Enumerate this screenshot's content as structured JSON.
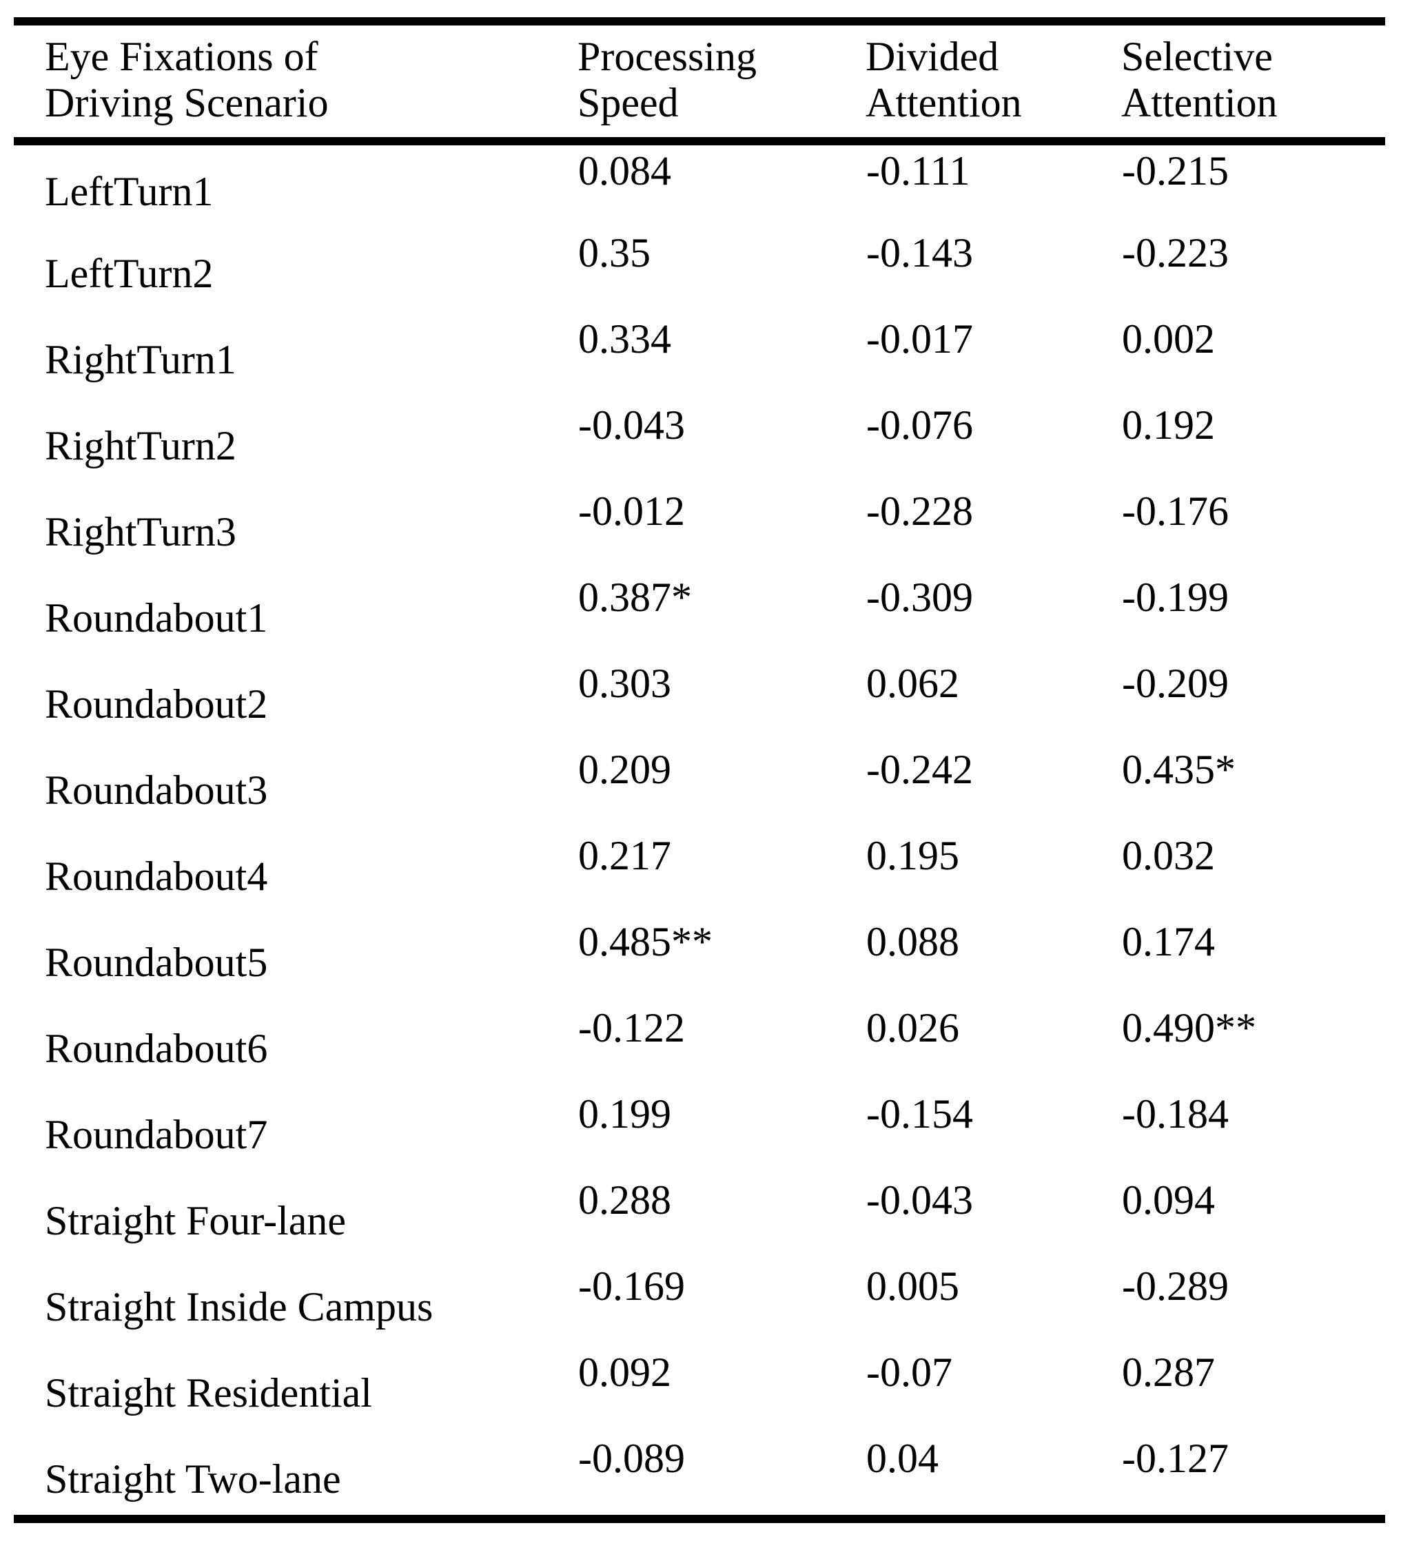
{
  "colors": {
    "background": "#ffffff",
    "text": "#000000",
    "rule": "#000000"
  },
  "table": {
    "header": {
      "col1_line1": "Eye Fixations of",
      "col1_line2": "Driving Scenario",
      "col2_line1": "Processing",
      "col2_line2": "Speed",
      "col3_line1": "Divided",
      "col3_line2": "Attention",
      "col4_line1": "Selective",
      "col4_line2": "Attention"
    },
    "columns": [
      {
        "key": "scenario",
        "name": "scenario-cell",
        "css": "cell-label"
      },
      {
        "key": "processing_speed",
        "name": "processing-speed-cell",
        "css": "cell-value"
      },
      {
        "key": "divided_attention",
        "name": "divided-attention-cell",
        "css": "cell-value"
      },
      {
        "key": "selective_attention",
        "name": "selective-attention-cell",
        "css": "cell-value"
      }
    ],
    "rows": [
      {
        "scenario": "LeftTurn1",
        "processing_speed": "0.084",
        "divided_attention": "-0.111",
        "selective_attention": "-0.215"
      },
      {
        "scenario": "LeftTurn2",
        "processing_speed": "0.35",
        "divided_attention": "-0.143",
        "selective_attention": "-0.223"
      },
      {
        "scenario": "RightTurn1",
        "processing_speed": "0.334",
        "divided_attention": "-0.017",
        "selective_attention": "0.002"
      },
      {
        "scenario": "RightTurn2",
        "processing_speed": "-0.043",
        "divided_attention": "-0.076",
        "selective_attention": "0.192"
      },
      {
        "scenario": "RightTurn3",
        "processing_speed": "-0.012",
        "divided_attention": "-0.228",
        "selective_attention": "-0.176"
      },
      {
        "scenario": "Roundabout1",
        "processing_speed": "0.387*",
        "divided_attention": "-0.309",
        "selective_attention": "-0.199"
      },
      {
        "scenario": "Roundabout2",
        "processing_speed": "0.303",
        "divided_attention": "0.062",
        "selective_attention": "-0.209"
      },
      {
        "scenario": "Roundabout3",
        "processing_speed": "0.209",
        "divided_attention": "-0.242",
        "selective_attention": "0.435*"
      },
      {
        "scenario": "Roundabout4",
        "processing_speed": "0.217",
        "divided_attention": "0.195",
        "selective_attention": "0.032"
      },
      {
        "scenario": "Roundabout5",
        "processing_speed": "0.485**",
        "divided_attention": "0.088",
        "selective_attention": "0.174"
      },
      {
        "scenario": "Roundabout6",
        "processing_speed": "-0.122",
        "divided_attention": "0.026",
        "selective_attention": "0.490**"
      },
      {
        "scenario": "Roundabout7",
        "processing_speed": "0.199",
        "divided_attention": "-0.154",
        "selective_attention": "-0.184"
      },
      {
        "scenario": "Straight Four-lane",
        "processing_speed": "0.288",
        "divided_attention": "-0.043",
        "selective_attention": "0.094"
      },
      {
        "scenario": "Straight Inside Campus",
        "processing_speed": "-0.169",
        "divided_attention": "0.005",
        "selective_attention": "-0.289"
      },
      {
        "scenario": "Straight Residential",
        "processing_speed": "0.092",
        "divided_attention": "-0.07",
        "selective_attention": "0.287"
      },
      {
        "scenario": "Straight Two-lane",
        "processing_speed": "-0.089",
        "divided_attention": "0.04",
        "selective_attention": "-0.127"
      }
    ]
  }
}
